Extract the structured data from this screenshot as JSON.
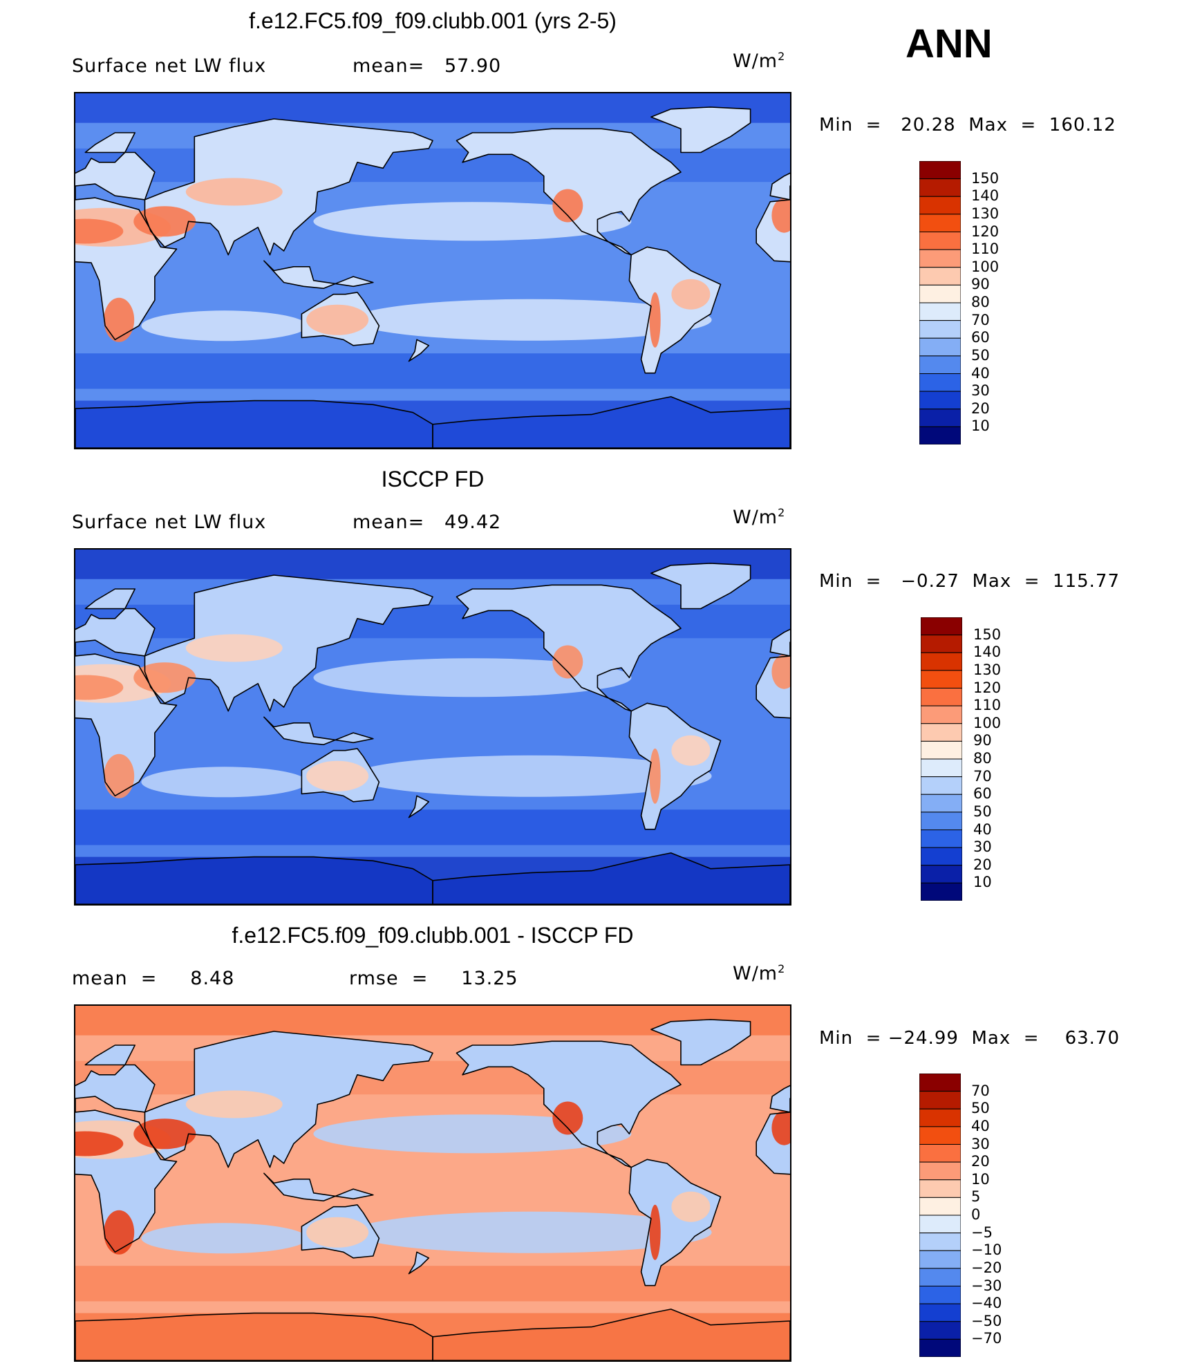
{
  "season": "ANN",
  "panels": [
    {
      "id": "model",
      "title": "f.e12.FC5.f09_f09.clubb.001 (yrs 2-5)",
      "left_text": "Surface net LW flux",
      "mid_text": "mean=   57.90",
      "units_text": "W/m",
      "units_sup": "2",
      "minmax": "Min  =   20.28  Max  =  160.12",
      "colorbar": {
        "labels": [
          "150",
          "140",
          "130",
          "120",
          "110",
          "100",
          "90",
          "80",
          "70",
          "60",
          "50",
          "40",
          "30",
          "20",
          "10"
        ],
        "colors": [
          "#8a0000",
          "#b51b00",
          "#d93300",
          "#f24f10",
          "#fa7040",
          "#fc9b78",
          "#fdcab0",
          "#fef0e2",
          "#ddebfb",
          "#b4d0fa",
          "#84aef5",
          "#5489ee",
          "#2c63e6",
          "#143fd1",
          "#0a20a8",
          "#00087a"
        ]
      },
      "map_colors": {
        "ocean": "#5c8ef0",
        "ocean_deep": "#2e63e4",
        "polar": "#1f4ad8",
        "land_hot": "#f77950",
        "land_warm": "#fcb79a",
        "land_mild": "#cfe0fb"
      }
    },
    {
      "id": "obs",
      "title": "ISCCP FD",
      "left_text": "Surface net LW flux",
      "mid_text": "mean=   49.42",
      "units_text": "W/m",
      "units_sup": "2",
      "minmax": "Min  =   −0.27  Max  =  115.77",
      "colorbar": {
        "labels": [
          "150",
          "140",
          "130",
          "120",
          "110",
          "100",
          "90",
          "80",
          "70",
          "60",
          "50",
          "40",
          "30",
          "20",
          "10"
        ],
        "colors": [
          "#8a0000",
          "#b51b00",
          "#d93300",
          "#f24f10",
          "#fa7040",
          "#fc9b78",
          "#fdcab0",
          "#fef0e2",
          "#ddebfb",
          "#b4d0fa",
          "#84aef5",
          "#5489ee",
          "#2c63e6",
          "#143fd1",
          "#0a20a8",
          "#00087a"
        ]
      },
      "map_colors": {
        "ocean": "#4f82ee",
        "ocean_deep": "#2456e0",
        "polar": "#1437c4",
        "land_hot": "#f98e66",
        "land_warm": "#fdd0bb",
        "land_mild": "#b9d2fa"
      }
    },
    {
      "id": "diff",
      "title": "f.e12.FC5.f09_f09.clubb.001 - ISCCP FD",
      "left_text": "mean  =     8.48",
      "mid_text": "rmse  =     13.25",
      "units_text": "W/m",
      "units_sup": "2",
      "minmax": "Min  = −24.99  Max  =    63.70",
      "colorbar": {
        "labels": [
          "70",
          "50",
          "40",
          "30",
          "20",
          "10",
          "5",
          "0",
          "−5",
          "−10",
          "−20",
          "−30",
          "−40",
          "−50",
          "−70"
        ],
        "colors": [
          "#8a0000",
          "#b51b00",
          "#d93300",
          "#f24f10",
          "#fa7040",
          "#fc9b78",
          "#fdcab0",
          "#fef0e2",
          "#ddebfb",
          "#b4d0fa",
          "#84aef5",
          "#5489ee",
          "#2c63e6",
          "#143fd1",
          "#0a20a8",
          "#00087a"
        ]
      },
      "map_colors": {
        "ocean": "#fca888",
        "ocean_deep": "#f9865c",
        "polar": "#f77545",
        "land_hot": "#e8401a",
        "land_warm": "#fdc9ad",
        "land_mild": "#b4cff9"
      }
    }
  ]
}
